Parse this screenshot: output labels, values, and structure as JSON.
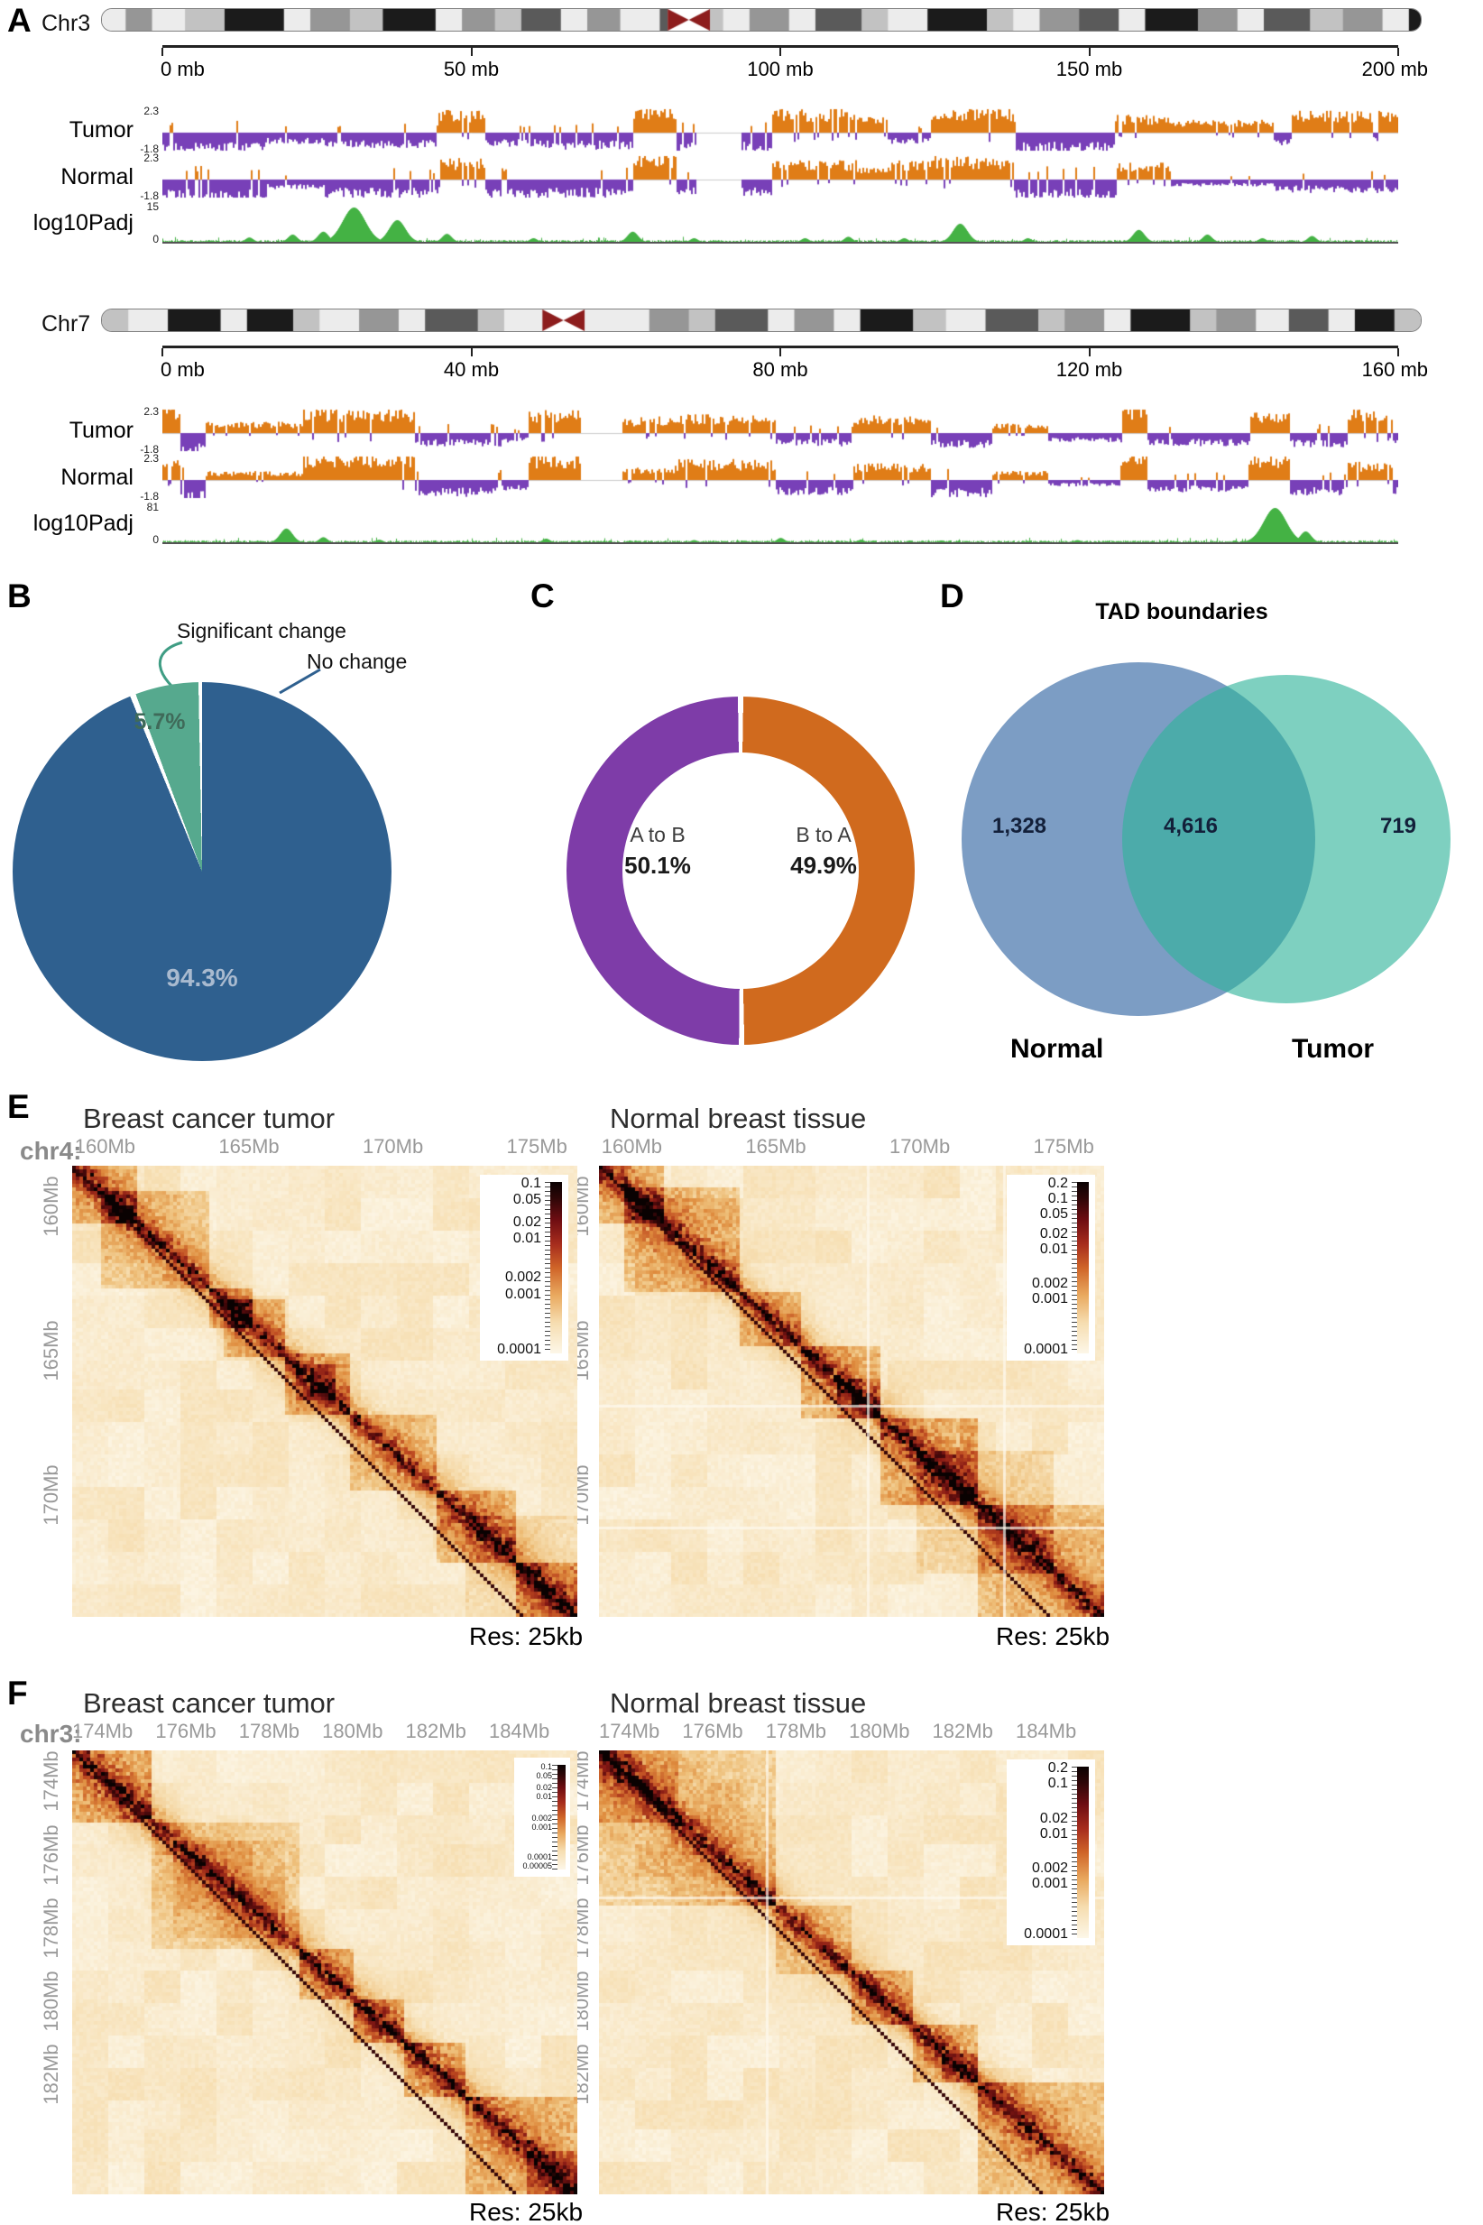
{
  "chart_data": [
    {
      "type": "pie",
      "panel": "B",
      "labels": [
        "No change",
        "Significant change"
      ],
      "values": [
        94.3,
        5.7
      ],
      "colors": [
        "#2f608f",
        "#56a98e"
      ],
      "legend_position": "top"
    },
    {
      "type": "pie",
      "panel": "C",
      "style": "donut",
      "labels": [
        "A to B",
        "B to A"
      ],
      "values": [
        50.1,
        49.9
      ],
      "colors": [
        "#7e3ca8",
        "#d06a1e"
      ]
    },
    {
      "type": "venn",
      "panel": "D",
      "title": "TAD boundaries",
      "sets": [
        "Normal",
        "Tumor"
      ],
      "unique": [
        1328,
        719
      ],
      "overlap": 4616
    }
  ],
  "panelA": {
    "label": "A",
    "colors": {
      "pos": "#e07d17",
      "neg": "#7840b8",
      "pval": "#44b244"
    },
    "chromosomes": [
      {
        "name": "Chr3",
        "seed": 31,
        "centromere": 0.445,
        "gap": [
          0.432,
          0.468
        ],
        "ticks": [
          "0 mb",
          "50 mb",
          "100 mb",
          "150 mb",
          "200 mb"
        ],
        "bands": [
          [
            0.018,
            0
          ],
          [
            0.02,
            2
          ],
          [
            0.025,
            0
          ],
          [
            0.03,
            1
          ],
          [
            0.045,
            4
          ],
          [
            0.02,
            0
          ],
          [
            0.03,
            2
          ],
          [
            0.025,
            1
          ],
          [
            0.04,
            4
          ],
          [
            0.02,
            0
          ],
          [
            0.025,
            2
          ],
          [
            0.02,
            1
          ],
          [
            0.03,
            3
          ],
          [
            0.02,
            0
          ],
          [
            0.025,
            2
          ],
          [
            0.03,
            0
          ],
          [
            0.028,
            3
          ],
          [
            0.02,
            1
          ],
          [
            0.02,
            0
          ],
          [
            0.03,
            2
          ],
          [
            0.02,
            0
          ],
          [
            0.035,
            3
          ],
          [
            0.02,
            1
          ],
          [
            0.03,
            0
          ],
          [
            0.045,
            4
          ],
          [
            0.02,
            1
          ],
          [
            0.02,
            0
          ],
          [
            0.03,
            2
          ],
          [
            0.03,
            3
          ],
          [
            0.02,
            0
          ],
          [
            0.04,
            4
          ],
          [
            0.03,
            2
          ],
          [
            0.02,
            0
          ],
          [
            0.035,
            3
          ],
          [
            0.025,
            1
          ],
          [
            0.03,
            2
          ],
          [
            0.02,
            0
          ],
          [
            0.035,
            4
          ],
          [
            0.02,
            1
          ],
          [
            0.02,
            2
          ],
          [
            0.018,
            0
          ]
        ],
        "tracks": {
          "tumor": {
            "label": "Tumor",
            "max": "2.3",
            "min": "-1.8"
          },
          "normal": {
            "label": "Normal",
            "max": "2.3",
            "min": "-1.8"
          },
          "pval": {
            "label": "log10Padj",
            "max": "15",
            "min": "0",
            "peaks": [
              [
                0.07,
                0.12
              ],
              [
                0.105,
                0.2
              ],
              [
                0.13,
                0.28
              ],
              [
                0.155,
                0.95
              ],
              [
                0.19,
                0.6
              ],
              [
                0.23,
                0.22
              ],
              [
                0.3,
                0.1
              ],
              [
                0.38,
                0.28
              ],
              [
                0.43,
                0.1
              ],
              [
                0.52,
                0.1
              ],
              [
                0.555,
                0.14
              ],
              [
                0.6,
                0.1
              ],
              [
                0.645,
                0.5
              ],
              [
                0.7,
                0.1
              ],
              [
                0.79,
                0.33
              ],
              [
                0.845,
                0.2
              ],
              [
                0.89,
                0.1
              ],
              [
                0.93,
                0.16
              ]
            ]
          }
        }
      },
      {
        "name": "Chr7",
        "seed": 77,
        "centromere": 0.35,
        "gap": [
          0.338,
          0.372
        ],
        "ticks": [
          "0 mb",
          "40 mb",
          "80 mb",
          "120 mb",
          "160 mb"
        ],
        "bands": [
          [
            0.02,
            1
          ],
          [
            0.03,
            0
          ],
          [
            0.04,
            4
          ],
          [
            0.02,
            0
          ],
          [
            0.035,
            4
          ],
          [
            0.02,
            1
          ],
          [
            0.03,
            0
          ],
          [
            0.03,
            2
          ],
          [
            0.02,
            0
          ],
          [
            0.04,
            3
          ],
          [
            0.02,
            1
          ],
          [
            0.03,
            0
          ],
          [
            0.025,
            2
          ],
          [
            0.025,
            0
          ],
          [
            0.03,
            0
          ],
          [
            0.03,
            2
          ],
          [
            0.02,
            1
          ],
          [
            0.04,
            3
          ],
          [
            0.02,
            0
          ],
          [
            0.03,
            2
          ],
          [
            0.02,
            0
          ],
          [
            0.04,
            4
          ],
          [
            0.025,
            1
          ],
          [
            0.03,
            0
          ],
          [
            0.04,
            3
          ],
          [
            0.02,
            1
          ],
          [
            0.03,
            2
          ],
          [
            0.02,
            0
          ],
          [
            0.045,
            4
          ],
          [
            0.02,
            1
          ],
          [
            0.03,
            2
          ],
          [
            0.025,
            0
          ],
          [
            0.03,
            3
          ],
          [
            0.02,
            0
          ],
          [
            0.03,
            4
          ],
          [
            0.02,
            1
          ]
        ],
        "tracks": {
          "tumor": {
            "label": "Tumor",
            "max": "2.3",
            "min": "-1.8"
          },
          "normal": {
            "label": "Normal",
            "max": "2.3",
            "min": "-1.8"
          },
          "pval": {
            "label": "log10Padj",
            "max": "81",
            "min": "0",
            "peaks": [
              [
                0.1,
                0.38
              ],
              [
                0.13,
                0.14
              ],
              [
                0.175,
                0.07
              ],
              [
                0.31,
                0.1
              ],
              [
                0.43,
                0.06
              ],
              [
                0.5,
                0.12
              ],
              [
                0.565,
                0.07
              ],
              [
                0.63,
                0.05
              ],
              [
                0.74,
                0.06
              ],
              [
                0.9,
                0.95
              ],
              [
                0.925,
                0.3
              ]
            ]
          }
        }
      }
    ]
  },
  "panelB": {
    "label": "B",
    "callouts": {
      "significant": "Significant change",
      "no_change": "No change"
    },
    "slices": {
      "no_change": {
        "label": "94.3%",
        "value": 94.3,
        "color": "#2f608f"
      },
      "significant": {
        "label": "5.7%",
        "value": 5.7,
        "color": "#56a98e"
      }
    }
  },
  "panelC": {
    "label": "C",
    "left": {
      "name": "A to B",
      "pct": "50.1%",
      "value": 50.1,
      "color": "#7e3ca8"
    },
    "right": {
      "name": "B to A",
      "pct": "49.9%",
      "value": 49.9,
      "color": "#d06a1e"
    }
  },
  "panelD": {
    "label": "D",
    "title": "TAD boundaries",
    "left": {
      "label": "Normal",
      "count": "1,328",
      "color": "#5b84b5"
    },
    "overlap": "4,616",
    "right": {
      "label": "Tumor",
      "count": "719",
      "color": "#2fb39a"
    }
  },
  "panelE": {
    "label": "E",
    "chrom": "chr4:",
    "maps": [
      {
        "title": "Breast cancer tumor",
        "res": "Res: 25kb",
        "seed": 11,
        "xticks": [
          "160Mb",
          "165Mb",
          "170Mb",
          "175Mb"
        ],
        "yticks": [
          "160Mb",
          "165Mb",
          "170Mb"
        ],
        "colorbar": [
          "0.1",
          "0.05",
          "0.02",
          "0.01",
          "0.002",
          "0.001",
          "0.0001"
        ],
        "blocks": [
          [
            0,
            0.13,
            0.5
          ],
          [
            0.06,
            0.27,
            0.42
          ],
          [
            0.27,
            0.36,
            0.52
          ],
          [
            0.3,
            0.42,
            0.45
          ],
          [
            0.42,
            0.55,
            0.5
          ],
          [
            0.44,
            0.52,
            0.3
          ],
          [
            0.55,
            0.72,
            0.42
          ],
          [
            0.72,
            0.88,
            0.5
          ],
          [
            0.88,
            1,
            0.55
          ],
          [
            0.78,
            1,
            0.2
          ]
        ]
      },
      {
        "title": "Normal breast tissue",
        "res": "Res: 25kb",
        "seed": 12,
        "xticks": [
          "160Mb",
          "165Mb",
          "170Mb",
          "175Mb"
        ],
        "yticks": [
          "160Mb",
          "165Mb",
          "170Mb"
        ],
        "colorbar": [
          "0.2",
          "0.1",
          "0.05",
          "0.02",
          "0.01",
          "0.002",
          "0.001",
          "0.0001"
        ],
        "blocks": [
          [
            0,
            0.13,
            0.48
          ],
          [
            0.05,
            0.28,
            0.5
          ],
          [
            0.28,
            0.4,
            0.42
          ],
          [
            0.4,
            0.56,
            0.52
          ],
          [
            0.47,
            0.56,
            0.3
          ],
          [
            0.56,
            0.75,
            0.58
          ],
          [
            0.63,
            0.9,
            0.3
          ],
          [
            0.75,
            1,
            0.48
          ]
        ],
        "lines": [
          0.53,
          0.8
        ]
      }
    ]
  },
  "panelF": {
    "label": "F",
    "chrom": "chr3:",
    "maps": [
      {
        "title": "Breast cancer tumor",
        "res": "Res: 25kb",
        "seed": 21,
        "xticks": [
          "174Mb",
          "176Mb",
          "178Mb",
          "180Mb",
          "182Mb",
          "184Mb"
        ],
        "yticks": [
          "174Mb",
          "176Mb",
          "178Mb",
          "180Mb",
          "182Mb"
        ],
        "colorbar": [
          "0.1",
          "0.05",
          "0.02",
          "0.01",
          "0.002",
          "0.001",
          "0.0001",
          "0.00005"
        ],
        "blocks": [
          [
            0,
            0.16,
            0.62
          ],
          [
            0.16,
            0.45,
            0.35
          ],
          [
            0.2,
            0.42,
            0.2
          ],
          [
            0.45,
            0.56,
            0.5
          ],
          [
            0.56,
            0.66,
            0.55
          ],
          [
            0.66,
            0.78,
            0.48
          ],
          [
            0.78,
            1,
            0.52
          ],
          [
            0.9,
            1,
            0.3
          ]
        ]
      },
      {
        "title": "Normal breast tissue",
        "res": "Res: 25kb",
        "seed": 22,
        "xticks": [
          "174Mb",
          "176Mb",
          "178Mb",
          "180Mb",
          "182Mb",
          "184Mb"
        ],
        "yticks": [
          "174Mb",
          "176Mb",
          "178Mb",
          "180Mb",
          "182Mb"
        ],
        "colorbar": [
          "0.2",
          "0.1",
          "0.02",
          "0.01",
          "0.002",
          "0.001",
          "0.0001"
        ],
        "blocks": [
          [
            0,
            0.35,
            0.45
          ],
          [
            0,
            0.16,
            0.3
          ],
          [
            0.35,
            0.5,
            0.42
          ],
          [
            0.5,
            0.62,
            0.5
          ],
          [
            0.62,
            0.75,
            0.45
          ],
          [
            0.68,
            0.75,
            0.28
          ],
          [
            0.75,
            1,
            0.5
          ]
        ],
        "lines": [
          0.33
        ]
      }
    ]
  }
}
